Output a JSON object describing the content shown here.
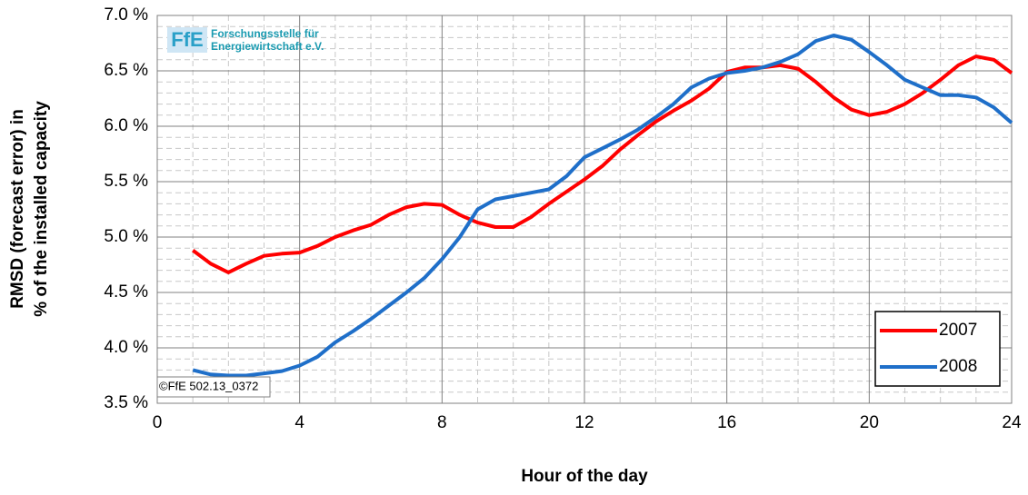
{
  "chart_data": {
    "type": "line",
    "x_label": "Hour of the day",
    "y_label": [
      "RMSD (forecast error) in",
      "% of the installed capacity"
    ],
    "logo": "FfE",
    "logo_text": [
      "Forschungsstelle für",
      "Energiewirtschaft e.V."
    ],
    "copyright": "©FfE 502.13_0372",
    "x": [
      1,
      1.5,
      2,
      2.5,
      3,
      3.5,
      4,
      4.5,
      5,
      5.5,
      6,
      6.5,
      7,
      7.5,
      8,
      8.5,
      9,
      9.5,
      10,
      10.5,
      11,
      11.5,
      12,
      12.5,
      13,
      13.5,
      14,
      14.5,
      15,
      15.5,
      16,
      16.5,
      17,
      17.5,
      18,
      18.5,
      19,
      19.5,
      20,
      20.5,
      21,
      21.5,
      22,
      22.5,
      23,
      23.5,
      24
    ],
    "series": [
      {
        "name": "2007",
        "color": "#ff0000",
        "values": [
          4.88,
          4.76,
          4.68,
          4.76,
          4.83,
          4.85,
          4.86,
          4.92,
          5.0,
          5.06,
          5.11,
          5.2,
          5.27,
          5.3,
          5.29,
          5.2,
          5.13,
          5.09,
          5.09,
          5.18,
          5.3,
          5.41,
          5.52,
          5.64,
          5.79,
          5.92,
          6.04,
          6.14,
          6.23,
          6.34,
          6.49,
          6.53,
          6.53,
          6.55,
          6.52,
          6.4,
          6.26,
          6.15,
          6.1,
          6.13,
          6.2,
          6.3,
          6.42,
          6.55,
          6.63,
          6.6,
          6.48
        ]
      },
      {
        "name": "2008",
        "color": "#1f6fc9",
        "values": [
          3.8,
          3.76,
          3.75,
          3.75,
          3.77,
          3.79,
          3.84,
          3.92,
          4.05,
          4.15,
          4.26,
          4.38,
          4.5,
          4.63,
          4.8,
          5.0,
          5.25,
          5.34,
          5.37,
          5.4,
          5.43,
          5.55,
          5.72,
          5.8,
          5.88,
          5.97,
          6.08,
          6.2,
          6.35,
          6.43,
          6.48,
          6.5,
          6.53,
          6.58,
          6.65,
          6.77,
          6.82,
          6.78,
          6.67,
          6.55,
          6.42,
          6.35,
          6.28,
          6.28,
          6.26,
          6.17,
          6.03
        ]
      }
    ],
    "xlim": [
      0,
      24
    ],
    "xticks": [
      0,
      4,
      8,
      12,
      16,
      20,
      24
    ],
    "ylim": [
      3.5,
      7.0
    ],
    "yticks": [
      {
        "value": 3.5,
        "label": "3.5 %"
      },
      {
        "value": 4.0,
        "label": "4.0 %"
      },
      {
        "value": 4.5,
        "label": "4.5 %"
      },
      {
        "value": 5.0,
        "label": "5.0 %"
      },
      {
        "value": 5.5,
        "label": "5.5 %"
      },
      {
        "value": 6.0,
        "label": "6.0 %"
      },
      {
        "value": 6.5,
        "label": "6.5 %"
      },
      {
        "value": 7.0,
        "label": "7.0 %"
      }
    ],
    "grid": true,
    "minor_grid": true,
    "legend": "lower right"
  }
}
